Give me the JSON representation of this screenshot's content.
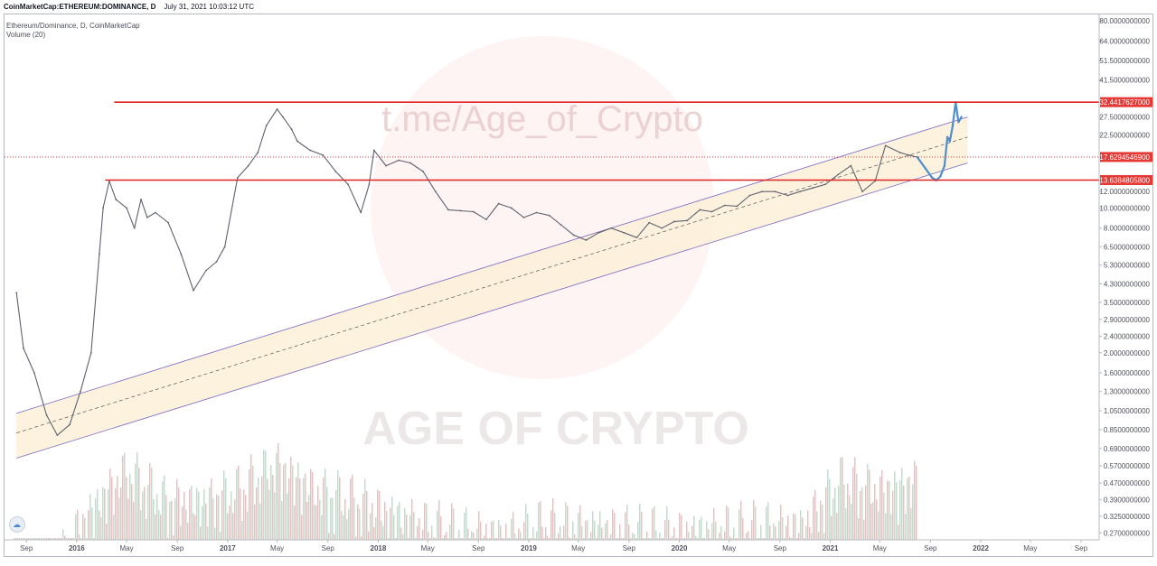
{
  "header": {
    "source": "CoinMarketCap:ETHEREUM:DOMINANCE, D",
    "timestamp": "July 31, 2021 10:03:12 UTC"
  },
  "legend": {
    "line1": "Ethereum/Dominance, D, CoinMarketCap",
    "line2": "Volume (20)"
  },
  "watermark": {
    "url": "t.me/Age_of_Crypto",
    "brand": "AGE OF CRYPTO"
  },
  "colors": {
    "candles": "#5f6270",
    "projection": "#4f8ec9",
    "resistance": "#e02424",
    "channel": "#7b68c2",
    "channel_fill": "#fdf0d8",
    "volume_up": "#b7dfc8",
    "volume_down": "#f3b8b8",
    "price_tag": "#e53935"
  },
  "chart_data": {
    "type": "line",
    "scale": "log",
    "x": [
      "2015-08-08",
      "2015-08-25",
      "2015-09-20",
      "2015-10-20",
      "2015-11-15",
      "2015-12-15",
      "2016-01-10",
      "2016-02-05",
      "2016-02-25",
      "2016-03-05",
      "2016-03-20",
      "2016-04-05",
      "2016-05-01",
      "2016-05-20",
      "2016-06-05",
      "2016-06-20",
      "2016-07-10",
      "2016-08-10",
      "2016-09-10",
      "2016-10-10",
      "2016-11-10",
      "2016-12-05",
      "2016-12-25",
      "2017-01-25",
      "2017-02-20",
      "2017-03-15",
      "2017-04-05",
      "2017-05-01",
      "2017-05-15",
      "2017-06-05",
      "2017-06-19",
      "2017-07-20",
      "2017-08-20",
      "2017-09-20",
      "2017-10-20",
      "2017-11-20",
      "2017-12-10",
      "2017-12-22",
      "2018-01-20",
      "2018-02-20",
      "2018-03-20",
      "2018-04-20",
      "2018-05-20",
      "2018-06-20",
      "2018-07-20",
      "2018-08-20",
      "2018-09-20",
      "2018-10-20",
      "2018-11-20",
      "2018-12-20",
      "2019-01-20",
      "2019-02-20",
      "2019-03-20",
      "2019-04-20",
      "2019-05-20",
      "2019-06-20",
      "2019-07-20",
      "2019-08-20",
      "2019-09-20",
      "2019-10-20",
      "2019-11-20",
      "2019-12-20",
      "2020-01-20",
      "2020-02-20",
      "2020-03-20",
      "2020-04-20",
      "2020-05-20",
      "2020-06-20",
      "2020-07-20",
      "2020-08-20",
      "2020-09-20",
      "2020-10-20",
      "2020-11-20",
      "2020-12-20",
      "2021-01-20",
      "2021-02-20",
      "2021-03-20",
      "2021-04-20",
      "2021-05-15",
      "2021-06-20",
      "2021-07-10",
      "2021-07-31"
    ],
    "values": [
      3.9,
      2.1,
      1.6,
      1.0,
      0.8,
      0.9,
      1.3,
      2.0,
      6.0,
      10.0,
      13.5,
      11.0,
      10.0,
      8.0,
      11.0,
      9.0,
      9.5,
      8.5,
      6.0,
      4.0,
      5.0,
      5.5,
      6.5,
      14.0,
      16.0,
      18.5,
      25.0,
      30.0,
      27.5,
      24.0,
      21.0,
      19.0,
      18.0,
      15.0,
      13.0,
      9.5,
      13.0,
      19.0,
      16.0,
      17.0,
      16.5,
      15.0,
      12.0,
      9.8,
      9.7,
      9.6,
      8.8,
      10.5,
      10.0,
      9.0,
      9.5,
      9.2,
      8.3,
      7.4,
      7.0,
      7.6,
      8.0,
      7.6,
      7.2,
      8.5,
      8.0,
      8.6,
      8.7,
      9.8,
      9.6,
      10.3,
      10.2,
      11.5,
      12.0,
      12.0,
      11.5,
      12.0,
      12.5,
      13.0,
      14.5,
      16.0,
      12.0,
      13.5,
      20.0,
      18.5,
      18.0,
      17.6
    ],
    "projection": {
      "x": [
        "2021-07-31",
        "2021-08-20",
        "2021-09-05",
        "2021-09-15",
        "2021-09-25",
        "2021-10-05",
        "2021-10-12",
        "2021-10-18",
        "2021-10-25",
        "2021-11-01",
        "2021-11-08",
        "2021-11-15"
      ],
      "values": [
        17.6,
        15.5,
        14.0,
        13.6,
        14.2,
        16.0,
        22.0,
        21.0,
        25.0,
        32.4,
        26.0,
        27.5
      ]
    },
    "volume": {
      "x": [
        "2015-08",
        "2015-11",
        "2016-02",
        "2016-05",
        "2016-08",
        "2016-11",
        "2017-02",
        "2017-05",
        "2017-08",
        "2017-11",
        "2018-02",
        "2018-05",
        "2018-08",
        "2018-11",
        "2019-02",
        "2019-05",
        "2019-08",
        "2019-11",
        "2020-02",
        "2020-05",
        "2020-08",
        "2020-11",
        "2021-02",
        "2021-05",
        "2021-07"
      ],
      "values": [
        0.25,
        0.2,
        0.4,
        0.6,
        0.45,
        0.45,
        0.5,
        0.65,
        0.5,
        0.45,
        0.4,
        0.35,
        0.33,
        0.32,
        0.35,
        0.35,
        0.34,
        0.33,
        0.33,
        0.34,
        0.35,
        0.35,
        0.55,
        0.5,
        0.55
      ]
    },
    "levels": [
      {
        "value": 32.4417627,
        "label": "32.4417627000"
      },
      {
        "value": 17.62945469,
        "label": "17.6294546900"
      },
      {
        "value": 13.63848058,
        "label": "13.6384805800"
      }
    ],
    "channel": {
      "lower": [
        [
          "2015-08-08",
          0.62
        ],
        [
          "2021-11-30",
          16.5
        ]
      ],
      "middle": [
        [
          "2015-08-08",
          0.82
        ],
        [
          "2021-11-30",
          22.0
        ]
      ],
      "upper": [
        [
          "2015-08-08",
          1.02
        ],
        [
          "2021-11-30",
          27.5
        ]
      ]
    },
    "y_ticks": [
      "80.0000000000",
      "64.0000000000",
      "51.5000000000",
      "41.5000000000",
      "32.4417627000",
      "27.5000000000",
      "22.5000000000",
      "17.6294546900",
      "13.6384805800",
      "12.0000000000",
      "10.0000000000",
      "8.0000000000",
      "6.5000000000",
      "5.3000000000",
      "4.3000000000",
      "3.5000000000",
      "2.9000000000",
      "2.4000000000",
      "2.0000000000",
      "1.6000000000",
      "1.3000000000",
      "1.0500000000",
      "0.8500000000",
      "0.6900000000",
      "0.5700000000",
      "0.4700000000",
      "0.3900000000",
      "0.3250000000",
      "0.2700000000"
    ],
    "x_ticks": [
      {
        "label": "Sep",
        "date": "2015-09-01"
      },
      {
        "label": "2016",
        "date": "2016-01-01"
      },
      {
        "label": "May",
        "date": "2016-05-01"
      },
      {
        "label": "Sep",
        "date": "2016-09-01"
      },
      {
        "label": "2017",
        "date": "2017-01-01"
      },
      {
        "label": "May",
        "date": "2017-05-01"
      },
      {
        "label": "Sep",
        "date": "2017-09-01"
      },
      {
        "label": "2018",
        "date": "2018-01-01"
      },
      {
        "label": "May",
        "date": "2018-05-01"
      },
      {
        "label": "Sep",
        "date": "2018-09-01"
      },
      {
        "label": "2019",
        "date": "2019-01-01"
      },
      {
        "label": "May",
        "date": "2019-05-01"
      },
      {
        "label": "Sep",
        "date": "2019-09-01"
      },
      {
        "label": "2020",
        "date": "2020-01-01"
      },
      {
        "label": "May",
        "date": "2020-05-01"
      },
      {
        "label": "Sep",
        "date": "2020-09-01"
      },
      {
        "label": "2021",
        "date": "2021-01-01"
      },
      {
        "label": "May",
        "date": "2021-05-01"
      },
      {
        "label": "Sep",
        "date": "2021-09-01"
      },
      {
        "label": "2022",
        "date": "2022-01-01"
      },
      {
        "label": "May",
        "date": "2022-05-01"
      },
      {
        "label": "Sep",
        "date": "2022-09-01"
      }
    ],
    "xlim": [
      "2015-07-10",
      "2022-10-15"
    ],
    "ylim": [
      0.25,
      86
    ],
    "grid": false
  }
}
